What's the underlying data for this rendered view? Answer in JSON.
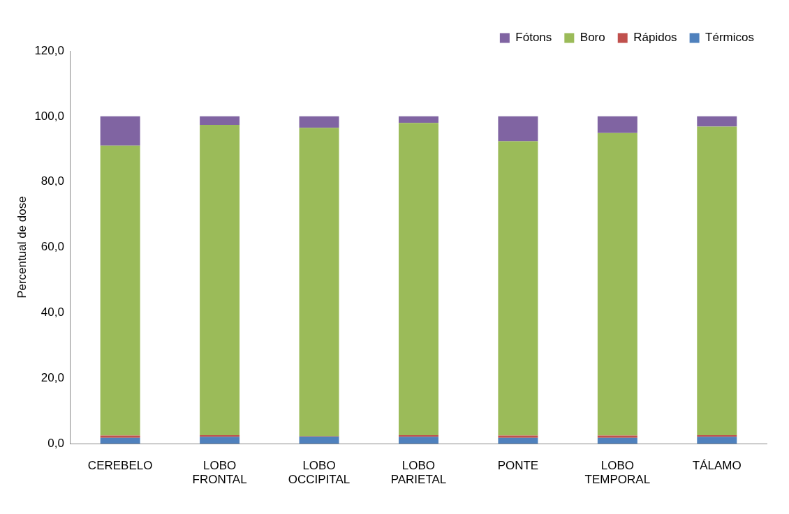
{
  "chart_data": {
    "type": "bar",
    "stacked": true,
    "ylabel": "Percentual de dose",
    "categories": [
      "CEREBELO",
      "LOBO FRONTAL",
      "LOBO OCCIPITAL",
      "LOBO PARIETAL",
      "PONTE",
      "LOBO TEMPORAL",
      "TÁLAMO"
    ],
    "series": [
      {
        "name": "Térmicos",
        "color": "#4f81bd",
        "values": [
          1.8,
          2.1,
          2.2,
          2.1,
          1.8,
          1.8,
          2.1
        ]
      },
      {
        "name": "Rápidos",
        "color": "#c0504d",
        "values": [
          0.7,
          0.5,
          0.1,
          0.5,
          0.7,
          0.7,
          0.5
        ]
      },
      {
        "name": "Boro",
        "color": "#9bbb59",
        "values": [
          88.6,
          94.8,
          94.2,
          95.4,
          89.9,
          92.4,
          94.3
        ]
      },
      {
        "name": "Fótons",
        "color": "#8064a2",
        "values": [
          8.9,
          2.6,
          3.5,
          2.0,
          7.6,
          5.1,
          3.1
        ]
      }
    ],
    "ylim": [
      0,
      120
    ],
    "yticks": [
      {
        "value": 0,
        "label": "0,0"
      },
      {
        "value": 20,
        "label": "20,0"
      },
      {
        "value": 40,
        "label": "40,0"
      },
      {
        "value": 60,
        "label": "60,0"
      },
      {
        "value": 80,
        "label": "80,0"
      },
      {
        "value": 100,
        "label": "100,0"
      },
      {
        "value": 120,
        "label": "120,0"
      }
    ],
    "grid": false,
    "legend": "top right"
  }
}
